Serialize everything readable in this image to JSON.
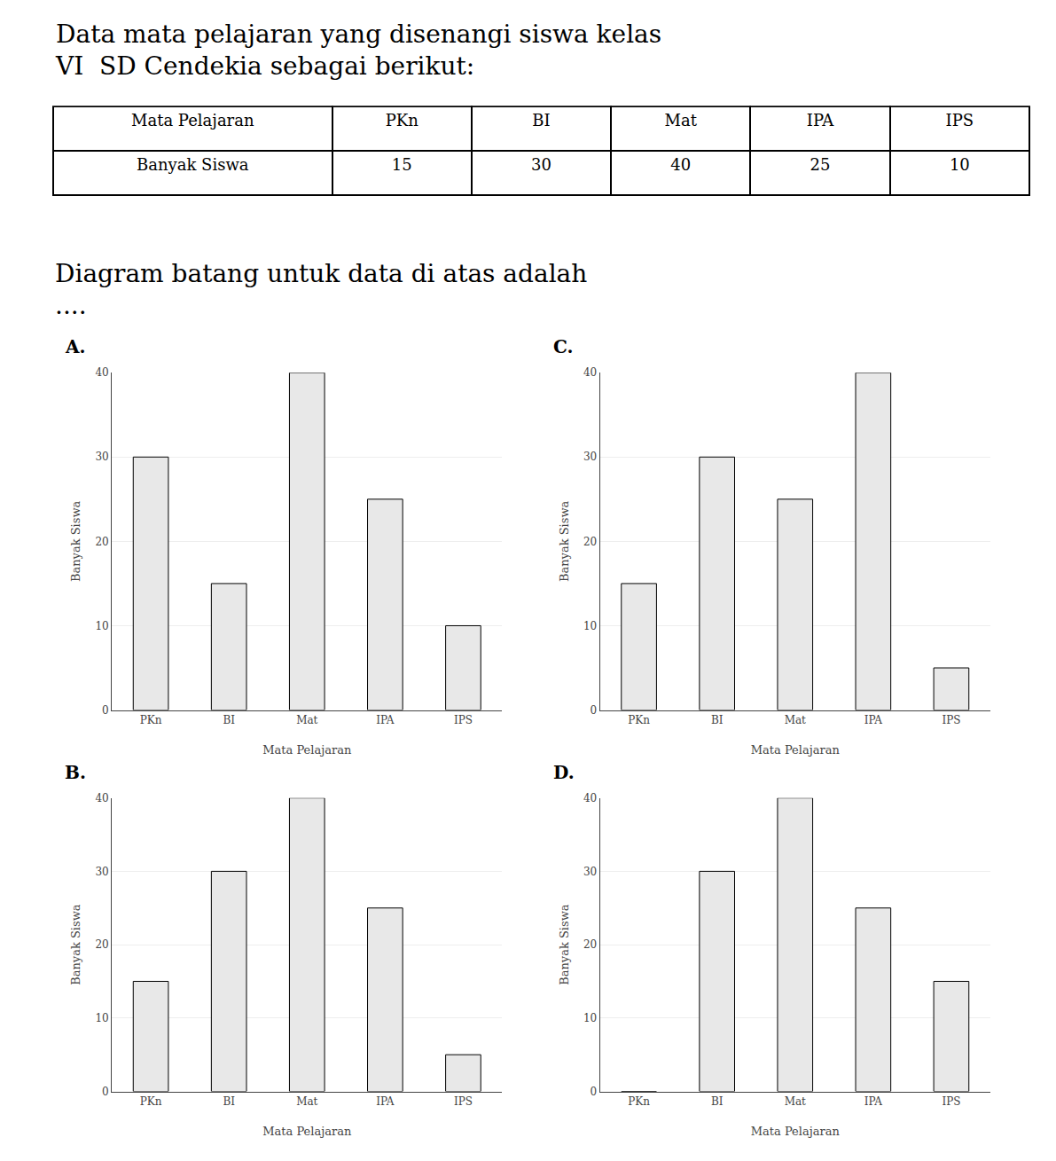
{
  "title": "Data mata pelajaran yang disenangi siswa kelas\nVI  SD Cendekia sebagai berikut:",
  "subtitle": "Diagram batang untuk data di atas adalah\n....",
  "chart_data": [
    {
      "type": "table",
      "columns": [
        "Mata Pelajaran",
        "PKn",
        "BI",
        "Mat",
        "IPA",
        "IPS"
      ],
      "rows": [
        [
          "Banyak Siswa",
          15,
          30,
          40,
          25,
          10
        ]
      ]
    },
    {
      "type": "bar",
      "title": "A.",
      "categories": [
        "PKn",
        "BI",
        "Mat",
        "IPA",
        "IPS"
      ],
      "values": [
        30,
        15,
        40,
        25,
        10
      ],
      "color": "#e8e8e8",
      "xlabel": "Mata Pelajaran",
      "ylabel": "Banyak Siswa",
      "ylim": [
        0,
        40
      ],
      "yticks": [
        0,
        10,
        20,
        30,
        40
      ],
      "grid": true
    },
    {
      "type": "bar",
      "title": "B.",
      "categories": [
        "PKn",
        "BI",
        "Mat",
        "IPA",
        "IPS"
      ],
      "values": [
        15,
        30,
        40,
        25,
        5
      ],
      "color": "#e8e8e8",
      "xlabel": "Mata Pelajaran",
      "ylabel": "Banyak Siswa",
      "ylim": [
        0,
        40
      ],
      "yticks": [
        0,
        10,
        20,
        30,
        40
      ],
      "grid": true
    },
    {
      "type": "bar",
      "title": "C.",
      "categories": [
        "PKn",
        "BI",
        "Mat",
        "IPA",
        "IPS"
      ],
      "values": [
        15,
        30,
        25,
        40,
        5
      ],
      "color": "#e8e8e8",
      "xlabel": "Mata Pelajaran",
      "ylabel": "Banyak Siswa",
      "ylim": [
        0,
        40
      ],
      "yticks": [
        0,
        10,
        20,
        30,
        40
      ],
      "grid": true
    },
    {
      "type": "bar",
      "title": "D.",
      "categories": [
        "PKn",
        "BI",
        "Mat",
        "IPA",
        "IPS"
      ],
      "values": [
        0,
        30,
        40,
        25,
        15
      ],
      "color": "#e8e8e8",
      "xlabel": "Mata Pelajaran",
      "ylabel": "Banyak Siswa",
      "ylim": [
        0,
        40
      ],
      "yticks": [
        0,
        10,
        20,
        30,
        40
      ],
      "grid": true
    }
  ]
}
